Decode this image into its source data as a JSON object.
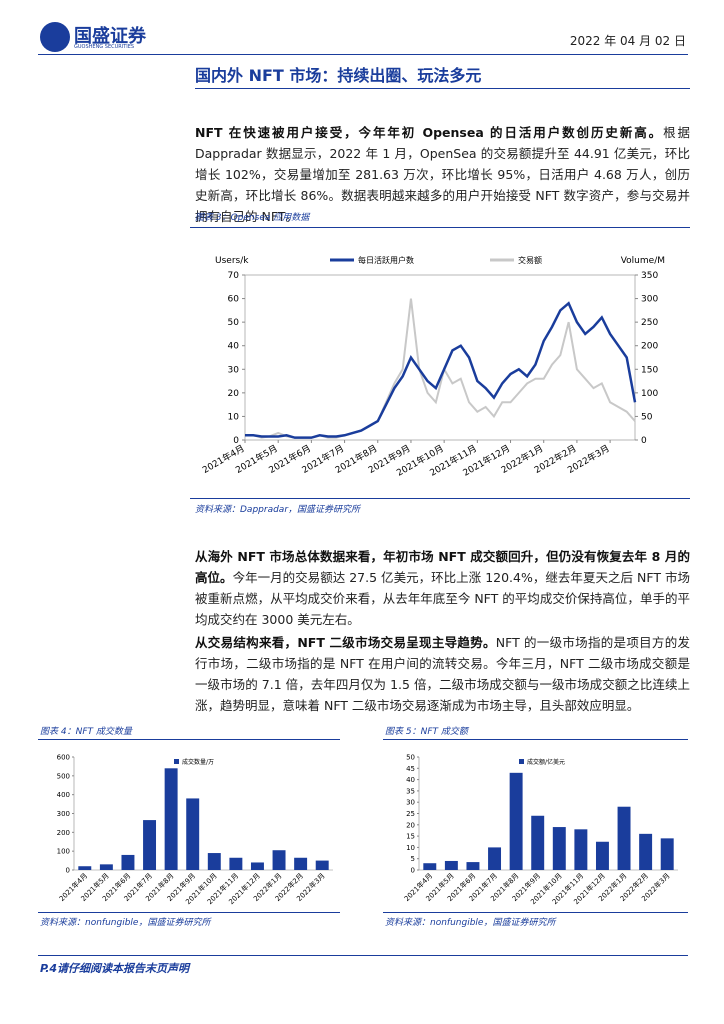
{
  "header": {
    "logo": "国盛证券",
    "logo_en": "GUOSHENG SECURITIES",
    "date": "2022 年 04 月 02 日"
  },
  "title": "国内外 NFT 市场：持续出圈、玩法多元",
  "paragraphs": [
    {
      "bold": "NFT 在快速被用户接受，今年年初 Opensea 的日活用户数创历史新高。",
      "text": "根据 Dappradar 数据显示，2022 年 1 月，OpenSea 的交易额提升至 44.91 亿美元，环比增长 102%，交易量增加至 281.63 万次，环比增长 95%，日活用户 4.68 万人，创历史新高，环比增长 86%。数据表明越来越多的用户开始接受 NFT 数字资产，参与交易并拥有自己的 NFT。"
    },
    {
      "bold": "从海外 NFT 市场总体数据来看，年初市场 NFT 成交额回升，但仍没有恢复去年 8 月的高位。",
      "text": "今年一月的交易额达 27.5 亿美元，环比上涨 120.4%，继去年夏天之后 NFT 市场被重新点燃，从平均成交价来看，从去年年底至今 NFT 的平均成交价保持高位，单手的平均成交约在 3000 美元左右。"
    },
    {
      "bold": "从交易结构来看，NFT 二级市场交易呈现主导趋势。",
      "text": "NFT 的一级市场指的是项目方的发行市场，二级市场指的是 NFT 在用户间的流转交易。今年三月，NFT 二级市场成交额是一级市场的 7.1 倍，去年四月仅为 1.5 倍，二级市场成交额与一级市场成交额之比连续上涨，趋势明显，意味着 NFT 二级市场交易逐渐成为市场主导，且头部效应明显。"
    }
  ],
  "figures": [
    {
      "caption": "图表 3：Opensea 应用数据",
      "source": "资料来源：Dappradar，国盛证券研究所"
    },
    {
      "caption": "图表 4：NFT 成交数量",
      "source": "资料来源：nonfungible，国盛证券研究所"
    },
    {
      "caption": "图表 5：NFT 成交额",
      "source": "资料来源：nonfungible，国盛证券研究所"
    }
  ],
  "footer": "P.4请仔细阅读本报告末页声明",
  "chart_data": [
    {
      "type": "line",
      "y_label": "Users/k",
      "y2_label": "Volume/M",
      "categories": [
        "2021年4月",
        null,
        null,
        null,
        "2021年5月",
        null,
        null,
        null,
        "2021年6月",
        null,
        null,
        null,
        "2021年7月",
        null,
        null,
        null,
        "2021年8月",
        null,
        null,
        null,
        "2021年9月",
        null,
        null,
        null,
        "2021年10月",
        null,
        null,
        null,
        "2021年11月",
        null,
        null,
        null,
        "2021年12月",
        null,
        null,
        null,
        "2022年1月",
        null,
        null,
        null,
        "2022年2月",
        null,
        null,
        null,
        "2022年3月",
        null,
        null,
        null
      ],
      "series": [
        {
          "name": "每日活跃用户数",
          "color": "#1a3d9c",
          "values": [
            2,
            2,
            1.5,
            1.5,
            1.5,
            2,
            1,
            1,
            1,
            2,
            1.5,
            1.5,
            2,
            3,
            4,
            6,
            8,
            15,
            22,
            27,
            35,
            30,
            25,
            22,
            30,
            38,
            40,
            35,
            25,
            22,
            18,
            24,
            28,
            30,
            27,
            32,
            42,
            48,
            55,
            58,
            50,
            45,
            48,
            52,
            45,
            40,
            35,
            16
          ]
        },
        {
          "name": "交易额",
          "color": "#c8c8c8",
          "axis": "y2",
          "values": [
            10,
            10,
            5,
            8,
            15,
            8,
            5,
            5,
            5,
            10,
            5,
            5,
            10,
            15,
            20,
            30,
            40,
            80,
            120,
            150,
            300,
            150,
            100,
            80,
            150,
            120,
            130,
            80,
            60,
            70,
            50,
            80,
            80,
            100,
            120,
            130,
            130,
            160,
            180,
            250,
            150,
            130,
            110,
            120,
            80,
            70,
            60,
            40
          ]
        }
      ],
      "ylim": [
        0,
        70
      ],
      "yticks": [
        0,
        10,
        20,
        30,
        40,
        50,
        60,
        70
      ],
      "y2lim": [
        0,
        350
      ],
      "y2ticks": [
        0,
        50,
        100,
        150,
        200,
        250,
        300,
        350
      ],
      "legend": "top"
    },
    {
      "type": "bar",
      "categories": [
        "2021年4月",
        "2021年5月",
        "2021年6月",
        "2021年7月",
        "2021年8月",
        "2021年9月",
        "2021年10月",
        "2021年11月",
        "2021年12月",
        "2022年1月",
        "2022年2月",
        "2022年3月"
      ],
      "series": [
        {
          "name": "成交数量/万",
          "color": "#1a3d9c",
          "values": [
            20,
            30,
            80,
            265,
            540,
            380,
            90,
            65,
            40,
            105,
            65,
            50
          ]
        }
      ],
      "ylim": [
        0,
        600
      ],
      "yticks": [
        0,
        100,
        200,
        300,
        400,
        500,
        600
      ],
      "legend": "top-left"
    },
    {
      "type": "bar",
      "categories": [
        "2021年4月",
        "2021年5月",
        "2021年6月",
        "2021年7月",
        "2021年8月",
        "2021年9月",
        "2021年10月",
        "2021年11月",
        "2021年12月",
        "2022年1月",
        "2022年2月",
        "2022年3月"
      ],
      "series": [
        {
          "name": "成交额/亿美元",
          "color": "#1a3d9c",
          "values": [
            3,
            4,
            3.5,
            10,
            43,
            24,
            19,
            18,
            12.5,
            28,
            16,
            14
          ]
        }
      ],
      "ylim": [
        0,
        50
      ],
      "yticks": [
        0,
        5,
        10,
        15,
        20,
        25,
        30,
        35,
        40,
        45,
        50
      ],
      "legend": "top-left"
    }
  ]
}
